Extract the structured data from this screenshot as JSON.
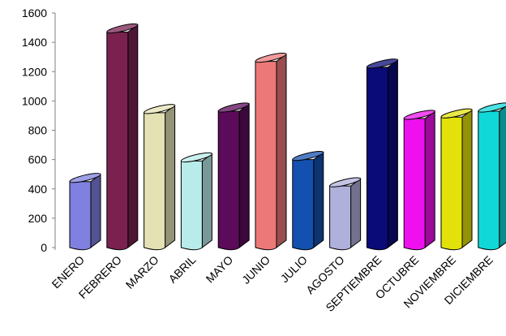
{
  "chart_data": {
    "type": "bar",
    "categories": [
      "ENERO",
      "FEBRERO",
      "MARZO",
      "ABRIL",
      "MAYO",
      "JUNIO",
      "JULIO",
      "AGOSTO",
      "SEPTIEMBRE",
      "OCTUBRE",
      "NOVIEMBRE",
      "DICIEMBRE"
    ],
    "values": [
      450,
      1470,
      920,
      590,
      930,
      1270,
      600,
      420,
      1230,
      880,
      890,
      930
    ],
    "colors": [
      "#8080e0",
      "#7a2150",
      "#e4e2b4",
      "#b8ecea",
      "#5c0a5a",
      "#ec7878",
      "#1450b0",
      "#b0b0dc",
      "#0a0a78",
      "#ee10ee",
      "#e2e20a",
      "#10d8d8"
    ],
    "yticks": [
      0,
      200,
      400,
      600,
      800,
      1000,
      1200,
      1400,
      1600
    ],
    "ylim": [
      0,
      1600
    ],
    "title": "",
    "xlabel": "",
    "ylabel": "",
    "legend": "none",
    "grid": false,
    "style": "3d-cylinder"
  }
}
